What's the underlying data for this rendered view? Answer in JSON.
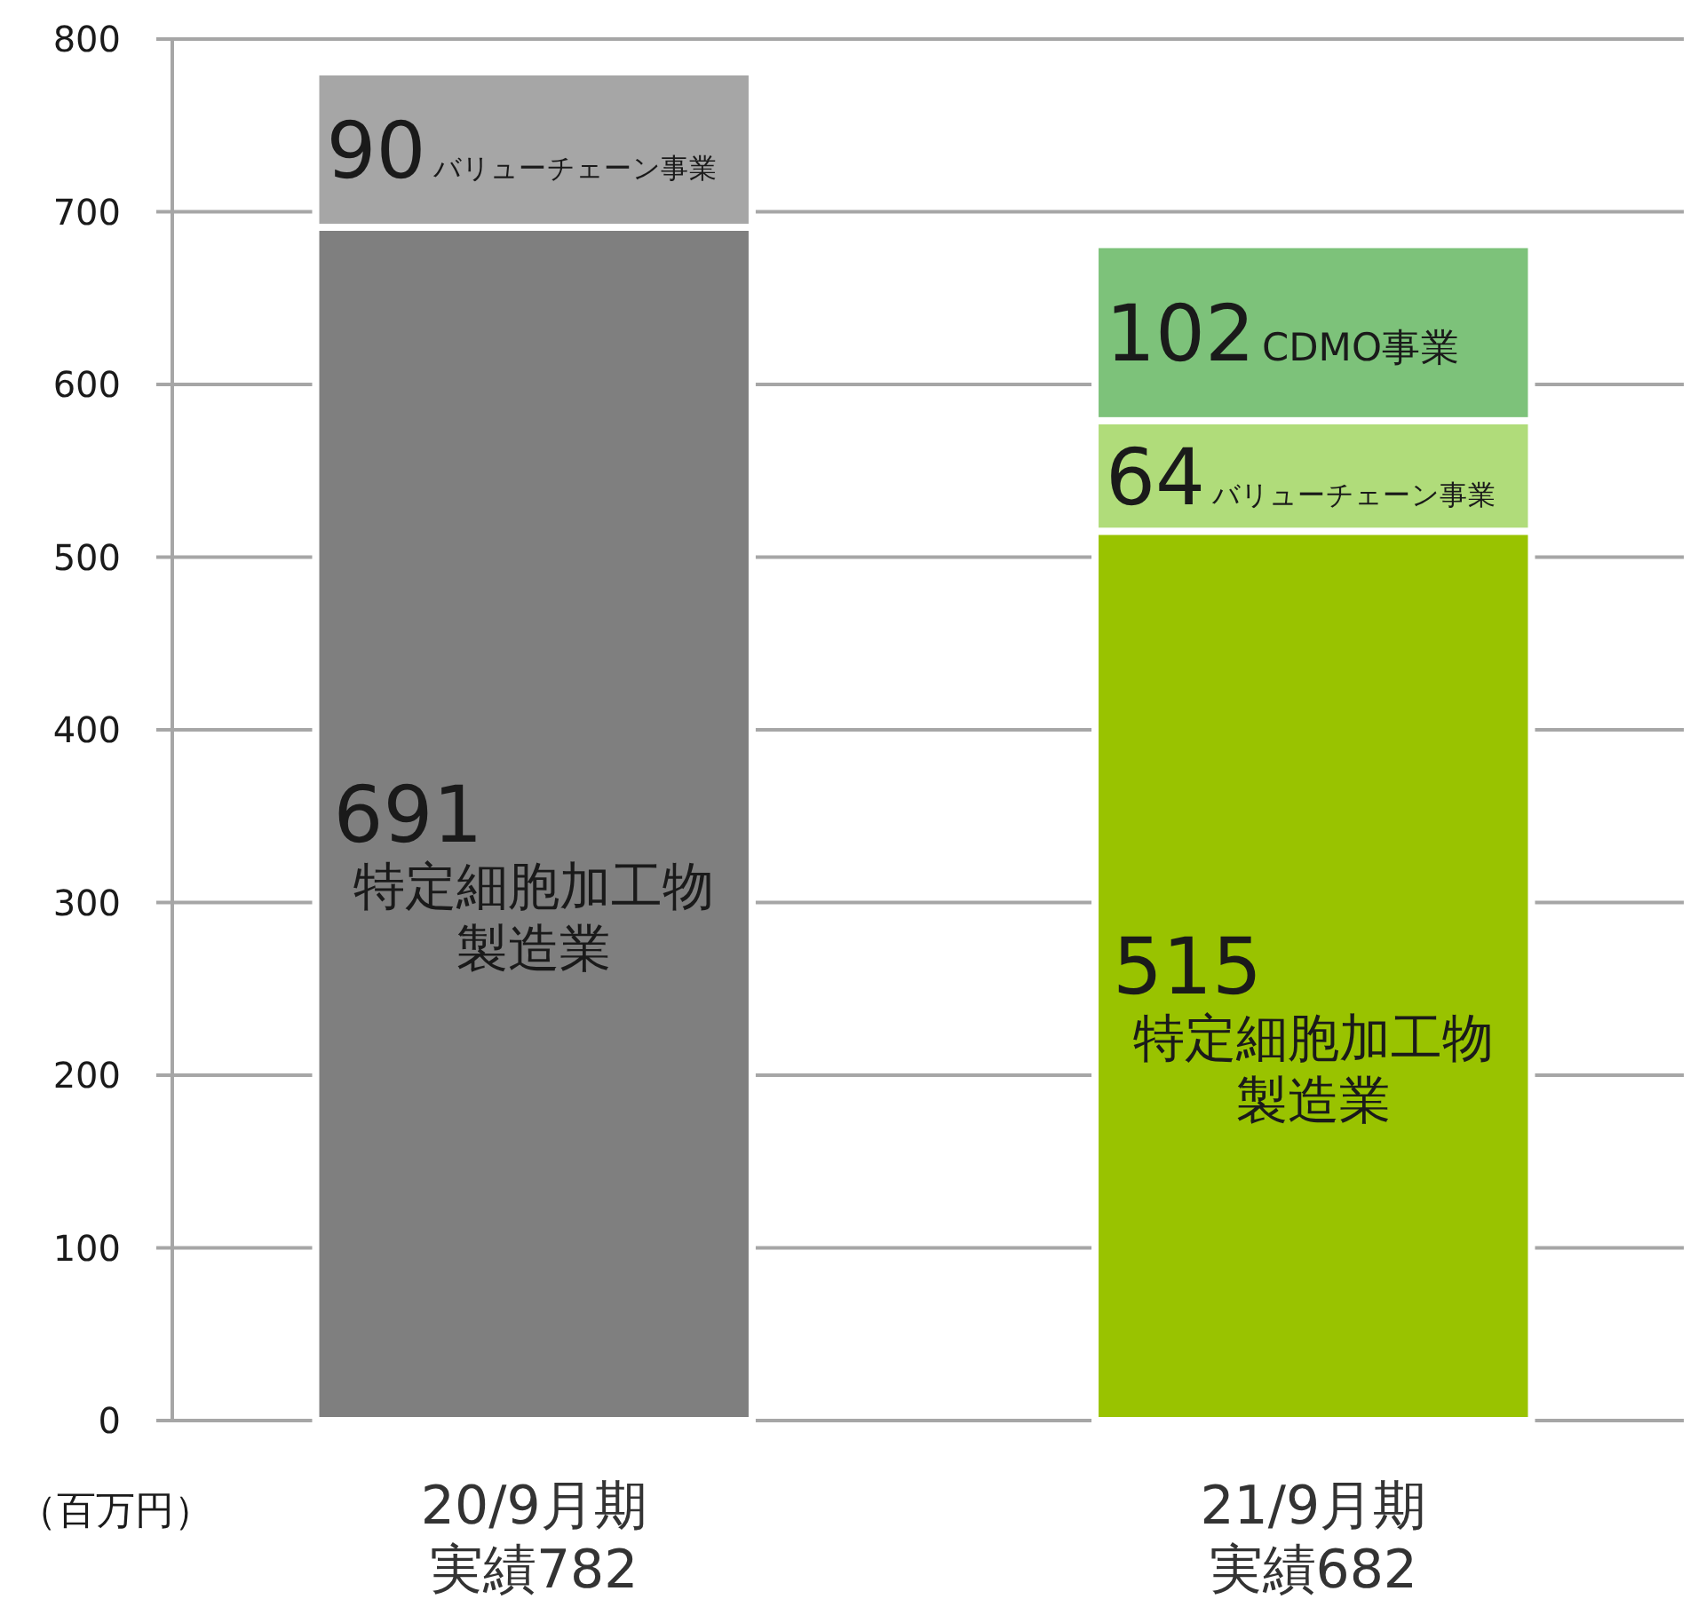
{
  "chart_data": {
    "type": "bar",
    "stacked": true,
    "ylabel": "（百万円）",
    "categories": [
      "20/9月期実績782",
      "21/9月期実績682"
    ],
    "series": [
      {
        "name": "特定細胞加工物製造業",
        "colors": [
          "#7f7f7f",
          "#99c300"
        ],
        "values": [
          691,
          515
        ]
      },
      {
        "name": "バリューチェーン事業",
        "colors": [
          "#a6a6a6",
          "#b0dc7a"
        ],
        "values": [
          90,
          64
        ]
      },
      {
        "name": "CDMO事業",
        "color": "#7dc27a",
        "values": [
          null,
          102
        ]
      }
    ],
    "ylim": [
      0,
      800
    ],
    "yticks": [
      0,
      100,
      200,
      300,
      400,
      500,
      600,
      700,
      800
    ],
    "grid": "y",
    "data_labels": true
  }
}
